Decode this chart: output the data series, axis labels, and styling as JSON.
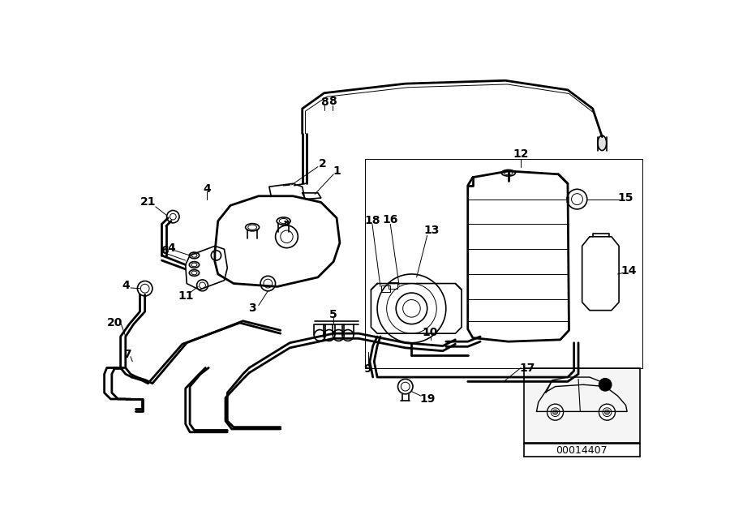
{
  "background_color": "#ffffff",
  "diagram_id": "00014407",
  "fig_width": 9.0,
  "fig_height": 6.35,
  "lw_tube": 2.0,
  "lw_main": 1.2,
  "lw_thin": 0.7
}
